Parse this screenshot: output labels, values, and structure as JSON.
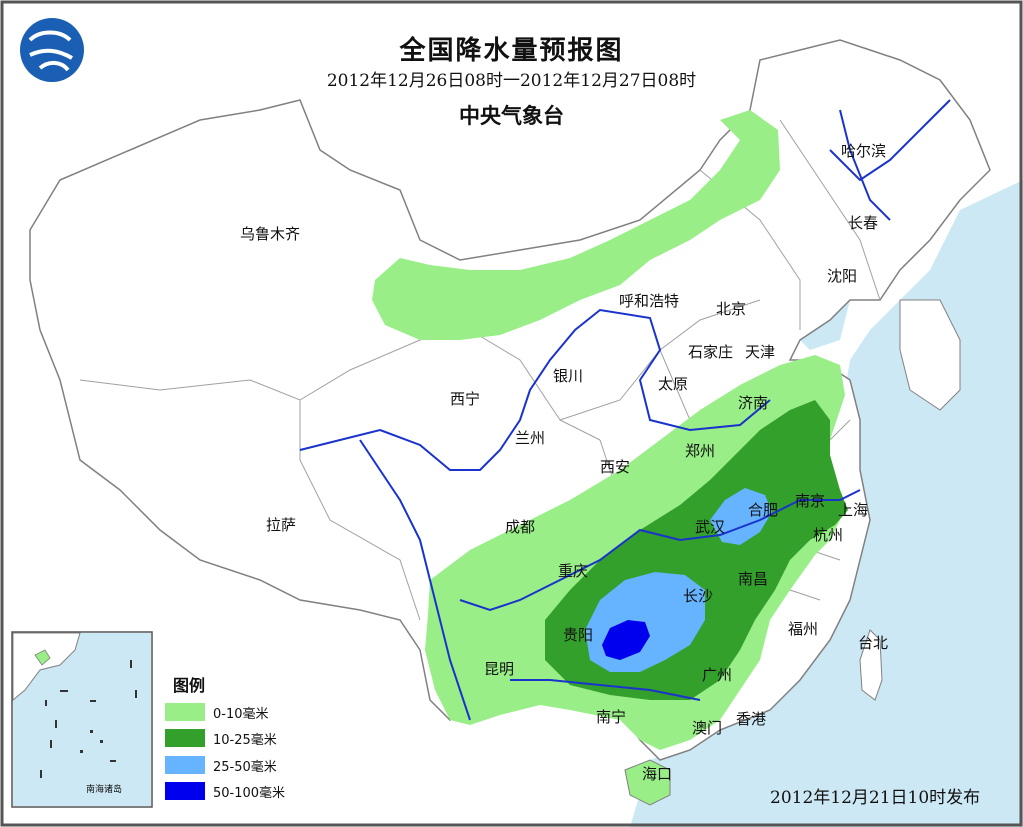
{
  "title": "全国降水量预报图",
  "period": "2012年12月26日08时一2012年12月27日08时",
  "issuer": "中央气象台",
  "issued_at": "2012年12月21日10时发布",
  "legend": {
    "title": "图例",
    "items": [
      {
        "label": "0-10毫米",
        "color": "#99ee88"
      },
      {
        "label": "10-25毫米",
        "color": "#33a02c"
      },
      {
        "label": "25-50毫米",
        "color": "#66b3ff"
      },
      {
        "label": "50-100毫米",
        "color": "#0000ee"
      }
    ]
  },
  "inset_label": "南海诸岛",
  "cities": [
    "哈尔滨",
    "长春",
    "乌鲁木齐",
    "沈阳",
    "呼和浩特",
    "北京",
    "石家庄",
    "天津",
    "银川",
    "太原",
    "西宁",
    "济南",
    "兰州",
    "郑州",
    "西安",
    "合肥",
    "南京",
    "上海",
    "拉萨",
    "成都",
    "武汉",
    "杭州",
    "重庆",
    "长沙",
    "南昌",
    "贵阳",
    "福州",
    "台北",
    "昆明",
    "广州",
    "南宁",
    "澳门",
    "香港",
    "海口"
  ],
  "colors": {
    "sea": "#cce8f4",
    "land": "#ffffff",
    "border": "#808080",
    "river": "#1a33cc",
    "frame": "#555555"
  }
}
